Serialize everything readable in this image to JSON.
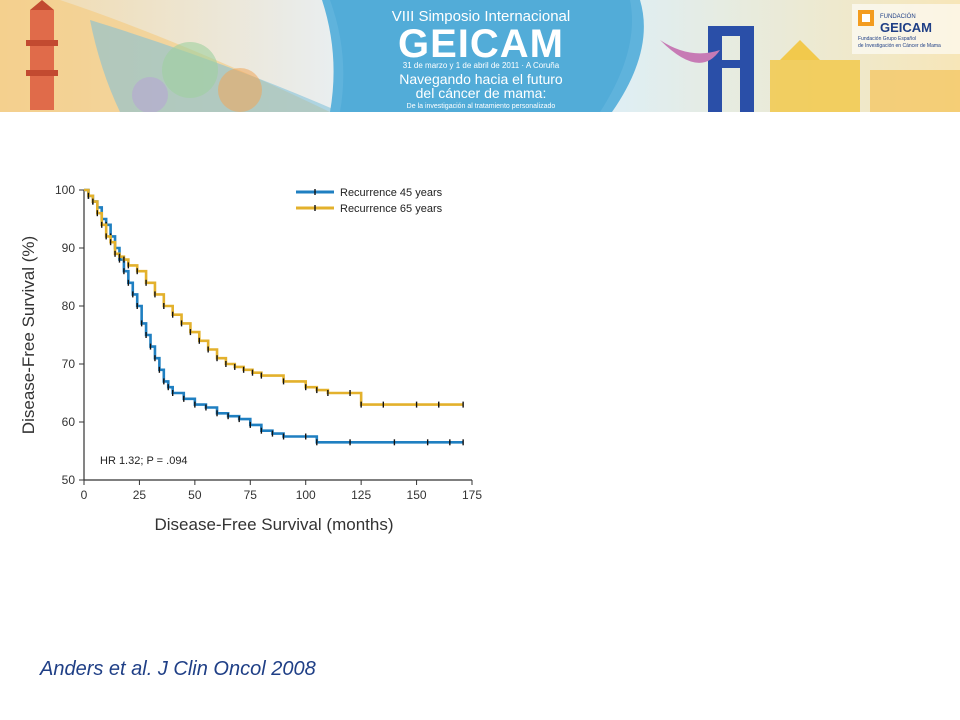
{
  "banner": {
    "edition": "VIII Simposio Internacional",
    "brand": "GEICAM",
    "dates": "31 de marzo y 1 de abril de 2011 · A Coruña",
    "tagline_1": "Navegando hacia el futuro",
    "tagline_2": "del cáncer de mama:",
    "tagline_3": "De la investigación al tratamiento personalizado",
    "logo_small": "FUNDACIÓN",
    "logo_name": "GEICAM",
    "logo_sub_1": "Fundación Grupo Español",
    "logo_sub_2": "de Investigación en Cáncer de Mama"
  },
  "chart_data": {
    "type": "line",
    "xlabel": "Disease-Free Survival (months)",
    "ylabel": "Disease-Free Survival (%)",
    "xlim": [
      0,
      175
    ],
    "ylim": [
      50,
      100
    ],
    "xticks": [
      0,
      25,
      50,
      75,
      100,
      125,
      150,
      175
    ],
    "yticks": [
      50,
      60,
      70,
      80,
      90,
      100
    ],
    "legend_position": "top-right",
    "annotation": "HR 1.32; P = .094",
    "grid": false,
    "series": [
      {
        "name": "Recurrence 45 years",
        "color": "#1f7fc1",
        "x": [
          0,
          2,
          4,
          6,
          8,
          10,
          12,
          14,
          16,
          18,
          20,
          22,
          24,
          26,
          28,
          30,
          32,
          34,
          36,
          38,
          40,
          45,
          50,
          55,
          60,
          65,
          70,
          75,
          80,
          85,
          90,
          100,
          105,
          120,
          140,
          155,
          165,
          171
        ],
        "y": [
          100,
          99,
          98,
          97,
          95,
          94,
          92,
          90,
          88,
          86,
          84,
          82,
          80,
          77,
          75,
          73,
          71,
          69,
          67,
          66,
          65,
          64,
          63,
          62.5,
          61.5,
          61,
          60.5,
          59.5,
          58.5,
          58,
          57.5,
          57.5,
          56.5,
          56.5,
          56.5,
          56.5,
          56.5,
          56.5
        ]
      },
      {
        "name": "Recurrence 65 years",
        "color": "#e3b12c",
        "x": [
          0,
          2,
          4,
          6,
          8,
          10,
          12,
          14,
          16,
          18,
          20,
          24,
          28,
          32,
          36,
          40,
          44,
          48,
          52,
          56,
          60,
          64,
          68,
          72,
          76,
          80,
          90,
          100,
          105,
          110,
          120,
          125,
          135,
          150,
          160,
          171
        ],
        "y": [
          100,
          99,
          98,
          96,
          94,
          92,
          91,
          89,
          88.5,
          88,
          87,
          86,
          84,
          82,
          80,
          78.5,
          77,
          75.5,
          74,
          72.5,
          71,
          70,
          69.5,
          69,
          68.5,
          68,
          67,
          66,
          65.5,
          65,
          65,
          63,
          63,
          63,
          63,
          63
        ]
      }
    ]
  },
  "citation": "Anders et al. J Clin Oncol 2008"
}
